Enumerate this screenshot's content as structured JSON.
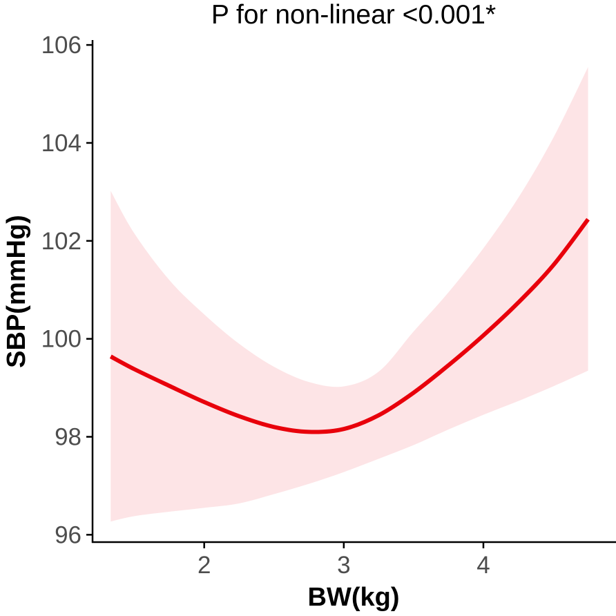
{
  "chart_data": {
    "type": "line",
    "title": "P for non-linear <0.001*",
    "xlabel": "BW(kg)",
    "ylabel": "SBP(mmHg)",
    "xlim": [
      1.2,
      4.95
    ],
    "ylim": [
      95.85,
      106.1
    ],
    "x_ticks": [
      2,
      3,
      4
    ],
    "x_tick_labels": [
      "2",
      "3",
      "4"
    ],
    "y_ticks": [
      96,
      98,
      100,
      102,
      104,
      106
    ],
    "y_tick_labels": [
      "96",
      "98",
      "100",
      "102",
      "104",
      "106"
    ],
    "grid": false,
    "legend": "none",
    "series": [
      {
        "x": [
          1.33,
          1.5,
          1.75,
          2.0,
          2.25,
          2.5,
          2.75,
          3.0,
          3.25,
          3.5,
          3.75,
          4.0,
          4.25,
          4.5,
          4.75
        ],
        "y": [
          99.64,
          99.38,
          99.04,
          98.71,
          98.42,
          98.2,
          98.1,
          98.16,
          98.44,
          98.9,
          99.46,
          100.07,
          100.74,
          101.5,
          102.44
        ],
        "lower": [
          96.27,
          96.38,
          96.47,
          96.55,
          96.64,
          96.83,
          97.04,
          97.28,
          97.55,
          97.83,
          98.15,
          98.45,
          98.73,
          99.03,
          99.35
        ],
        "upper": [
          103.02,
          102.15,
          101.2,
          100.5,
          99.9,
          99.43,
          99.12,
          99.03,
          99.33,
          100.15,
          100.95,
          101.85,
          102.88,
          104.1,
          105.55
        ]
      }
    ],
    "colors": {
      "line": "#e8000b",
      "band": "#fde4e6",
      "axis": "#000000",
      "tick_text": "#4d4d4d"
    }
  }
}
